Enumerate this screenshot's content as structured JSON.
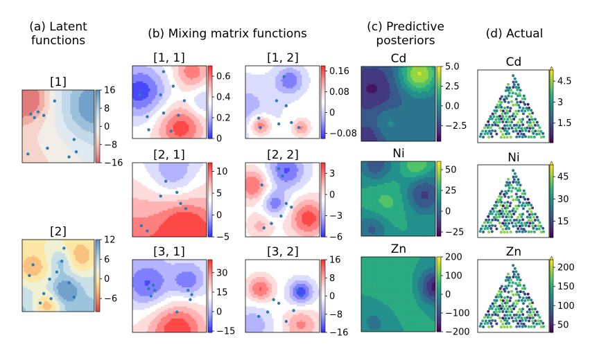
{
  "figure": {
    "col_a_title": "(a) Latent\nfunctions",
    "col_b_title": "(b) Mixing matrix functions",
    "col_c_title": "(c) Predictive\nposteriors",
    "col_d_title": "(d) Actual"
  },
  "chart_data": [
    {
      "id": "latent_1",
      "type": "heatmap",
      "title": "[1]",
      "colormap": "RdBu",
      "colorbar_ticks": [
        16,
        8,
        0,
        -8,
        -16
      ],
      "vlim": [
        -16,
        16
      ],
      "points_shown": true
    },
    {
      "id": "latent_2",
      "type": "heatmap",
      "title": "[2]",
      "colormap": "RdYlBu",
      "colorbar_ticks": [
        12,
        6,
        0,
        -6
      ],
      "vlim": [
        -10,
        12
      ],
      "points_shown": true
    },
    {
      "id": "mix_1_1",
      "type": "heatmap",
      "title": "[1, 1]",
      "colormap": "bwr",
      "colorbar_ticks": [
        0.6,
        0.4,
        0.2,
        0.0
      ],
      "vlim": [
        0,
        0.7
      ],
      "points_shown": true
    },
    {
      "id": "mix_1_2",
      "type": "heatmap",
      "title": "[1, 2]",
      "colormap": "bwr",
      "colorbar_ticks": [
        0.16,
        0.08,
        0.0,
        -0.08
      ],
      "vlim": [
        -0.1,
        0.18
      ],
      "points_shown": true
    },
    {
      "id": "mix_2_1",
      "type": "heatmap",
      "title": "[2, 1]",
      "colormap": "bwr",
      "colorbar_ticks": [
        10,
        5,
        0,
        -5
      ],
      "vlim": [
        -5,
        12
      ],
      "points_shown": true
    },
    {
      "id": "mix_2_2",
      "type": "heatmap",
      "title": "[2, 2]",
      "colormap": "bwr",
      "colorbar_ticks": [
        3,
        0,
        -3,
        -6
      ],
      "vlim": [
        -6,
        4.5
      ],
      "points_shown": true
    },
    {
      "id": "mix_3_1",
      "type": "heatmap",
      "title": "[3, 1]",
      "colormap": "bwr",
      "colorbar_ticks": [
        30,
        15,
        0,
        -15
      ],
      "vlim": [
        -16,
        40
      ],
      "points_shown": true
    },
    {
      "id": "mix_3_2",
      "type": "heatmap",
      "title": "[3, 2]",
      "colormap": "bwr",
      "colorbar_ticks": [
        16,
        8,
        0,
        -8,
        -16
      ],
      "vlim": [
        -16,
        16
      ],
      "points_shown": true
    },
    {
      "id": "pred_cd",
      "type": "heatmap",
      "title": "Cd",
      "colormap": "viridis",
      "colorbar_ticks": [
        "5.0",
        "2.5",
        "0.0",
        "−2.5"
      ],
      "vlim": [
        -4.5,
        5
      ]
    },
    {
      "id": "pred_ni",
      "type": "heatmap",
      "title": "Ni",
      "colormap": "viridis",
      "colorbar_ticks": [
        50,
        25,
        0,
        -25
      ],
      "vlim": [
        -30,
        60
      ]
    },
    {
      "id": "pred_zn",
      "type": "heatmap",
      "title": "Zn",
      "colormap": "viridis",
      "colorbar_ticks": [
        200,
        100,
        0,
        -100,
        -200
      ],
      "vlim": [
        -200,
        200
      ]
    },
    {
      "id": "actual_cd",
      "type": "scatter",
      "title": "Cd",
      "colormap": "viridis",
      "colorbar_ticks": [
        4.5,
        3.0,
        1.5
      ],
      "vlim": [
        0.1,
        5.3
      ]
    },
    {
      "id": "actual_ni",
      "type": "scatter",
      "title": "Ni",
      "colormap": "viridis",
      "colorbar_ticks": [
        45,
        30,
        15
      ],
      "vlim": [
        4,
        53
      ]
    },
    {
      "id": "actual_zn",
      "type": "scatter",
      "title": "Zn",
      "colormap": "viridis",
      "colorbar_ticks": [
        200,
        150,
        100,
        50
      ],
      "vlim": [
        30,
        220
      ]
    }
  ]
}
